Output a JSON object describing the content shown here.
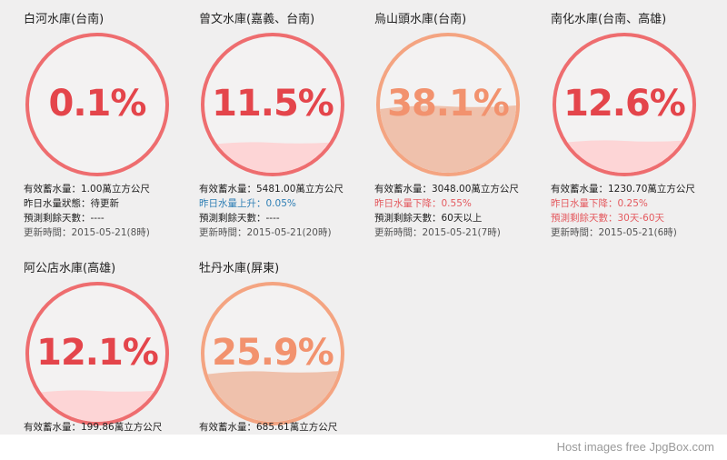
{
  "reservoirs": [
    {
      "name": "白河水庫(台南)",
      "percent": "0.1%",
      "fill": 0.001,
      "color": "#ee6d6f",
      "lines": [
        {
          "text": "有效蓄水量：1.00萬立方公尺",
          "style": ""
        },
        {
          "text": "昨日水量狀態：待更新",
          "style": ""
        },
        {
          "text": "預測剩餘天數：----",
          "style": ""
        },
        {
          "text": "更新時間：2015-05-21(8時)",
          "style": "gray"
        }
      ]
    },
    {
      "name": "曾文水庫(嘉義、台南)",
      "percent": "11.5%",
      "fill": 0.115,
      "color": "#ee6d6f",
      "lines": [
        {
          "text": "有效蓄水量：5481.00萬立方公尺",
          "style": ""
        },
        {
          "text": "昨日水量上升：0.05%",
          "style": "blue"
        },
        {
          "text": "預測剩餘天數：----",
          "style": ""
        },
        {
          "text": "更新時間：2015-05-21(20時)",
          "style": "gray"
        }
      ]
    },
    {
      "name": "烏山頭水庫(台南)",
      "percent": "38.1%",
      "fill": 0.381,
      "color": "#f4a481",
      "lines": [
        {
          "text": "有效蓄水量：3048.00萬立方公尺",
          "style": ""
        },
        {
          "text": "昨日水量下降：0.55%",
          "style": "red"
        },
        {
          "text": "預測剩餘天數：60天以上",
          "style": ""
        },
        {
          "text": "更新時間：2015-05-21(7時)",
          "style": "gray"
        }
      ]
    },
    {
      "name": "南化水庫(台南、高雄)",
      "percent": "12.6%",
      "fill": 0.126,
      "color": "#ee6d6f",
      "lines": [
        {
          "text": "有效蓄水量：1230.70萬立方公尺",
          "style": ""
        },
        {
          "text": "昨日水量下降：0.25%",
          "style": "red"
        },
        {
          "text": "預測剩餘天數：30天-60天",
          "style": "red"
        },
        {
          "text": "更新時間：2015-05-21(6時)",
          "style": "gray"
        }
      ]
    },
    {
      "name": "阿公店水庫(高雄)",
      "percent": "12.1%",
      "fill": 0.121,
      "color": "#ee6d6f",
      "lines": [
        {
          "text": "有效蓄水量：199.86萬立方公尺",
          "style": ""
        }
      ]
    },
    {
      "name": "牡丹水庫(屏東)",
      "percent": "25.9%",
      "fill": 0.259,
      "color": "#f4a481",
      "lines": [
        {
          "text": "有效蓄水量：685.61萬立方公尺",
          "style": ""
        }
      ]
    }
  ],
  "footer": {
    "text": "Host images free JpgBox.com"
  }
}
